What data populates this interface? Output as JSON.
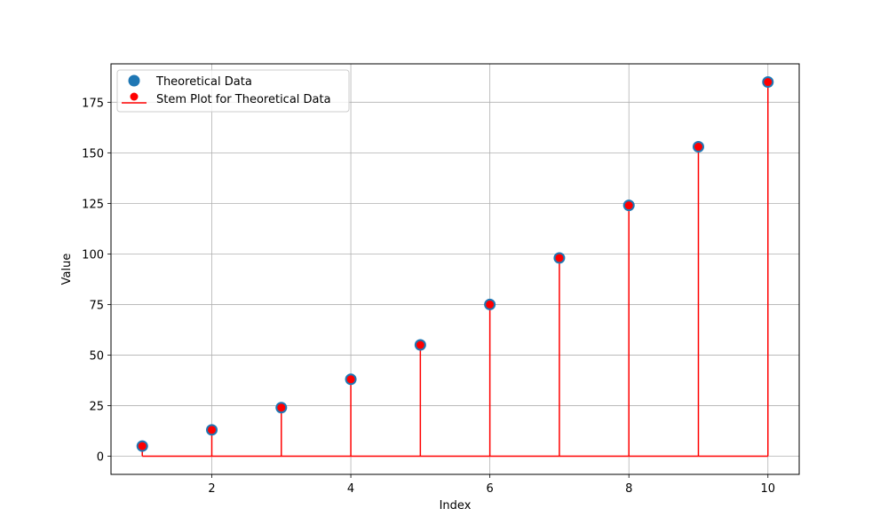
{
  "chart_data": {
    "type": "stem",
    "title": "",
    "xlabel": "Index",
    "ylabel": "Value",
    "xlim": [
      0.55,
      10.45
    ],
    "ylim": [
      -9.0,
      194.0
    ],
    "x_ticks": [
      2,
      4,
      6,
      8,
      10
    ],
    "y_ticks": [
      0,
      25,
      50,
      75,
      100,
      125,
      150,
      175
    ],
    "grid": true,
    "legend_position": "top-left",
    "baseline": 0,
    "series": [
      {
        "name": "Theoretical Data",
        "kind": "scatter",
        "color": "#1f77b4",
        "x": [
          1,
          2,
          3,
          4,
          5,
          6,
          7,
          8,
          9,
          10
        ],
        "y": [
          5,
          13,
          24,
          38,
          55,
          75,
          98,
          124,
          153,
          185
        ]
      },
      {
        "name": "Stem Plot for Theoretical Data",
        "kind": "stem",
        "color": "#ff0000",
        "x": [
          1,
          2,
          3,
          4,
          5,
          6,
          7,
          8,
          9,
          10
        ],
        "y": [
          5,
          13,
          24,
          38,
          55,
          75,
          98,
          124,
          153,
          185
        ]
      }
    ]
  }
}
